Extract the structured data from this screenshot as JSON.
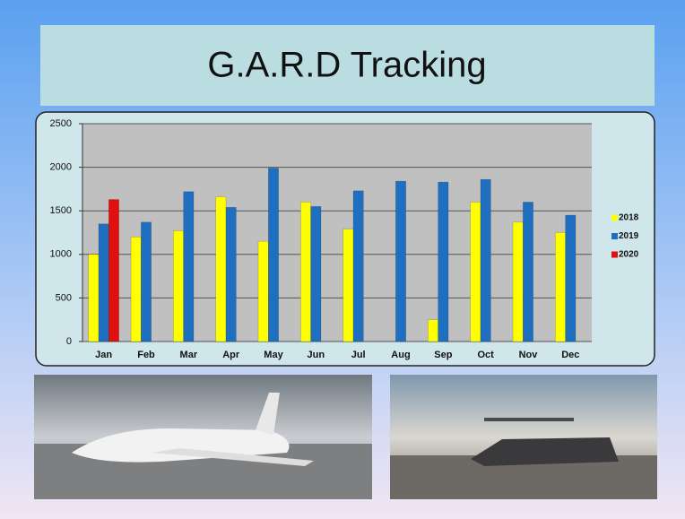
{
  "chart_data": {
    "type": "bar",
    "title": "G.A.R.D Tracking",
    "categories": [
      "Jan",
      "Feb",
      "Mar",
      "Apr",
      "May",
      "Jun",
      "Jul",
      "Aug",
      "Sep",
      "Oct",
      "Nov",
      "Dec"
    ],
    "series": [
      {
        "name": "2018",
        "color": "#ffff00",
        "values": [
          1000,
          1200,
          1270,
          1660,
          1150,
          1600,
          1290,
          null,
          250,
          1600,
          1370,
          1250
        ]
      },
      {
        "name": "2019",
        "color": "#1f6fc0",
        "values": [
          1350,
          1370,
          1720,
          1540,
          1990,
          1550,
          1730,
          1840,
          1830,
          1860,
          1600,
          1450
        ]
      },
      {
        "name": "2020",
        "color": "#e01010",
        "values": [
          1630,
          null,
          null,
          null,
          null,
          null,
          null,
          null,
          null,
          null,
          null,
          null
        ]
      }
    ],
    "ylim": [
      0,
      2500
    ],
    "yticks": [
      0,
      500,
      1000,
      1500,
      2000,
      2500
    ],
    "grid": true,
    "legend": "right"
  }
}
